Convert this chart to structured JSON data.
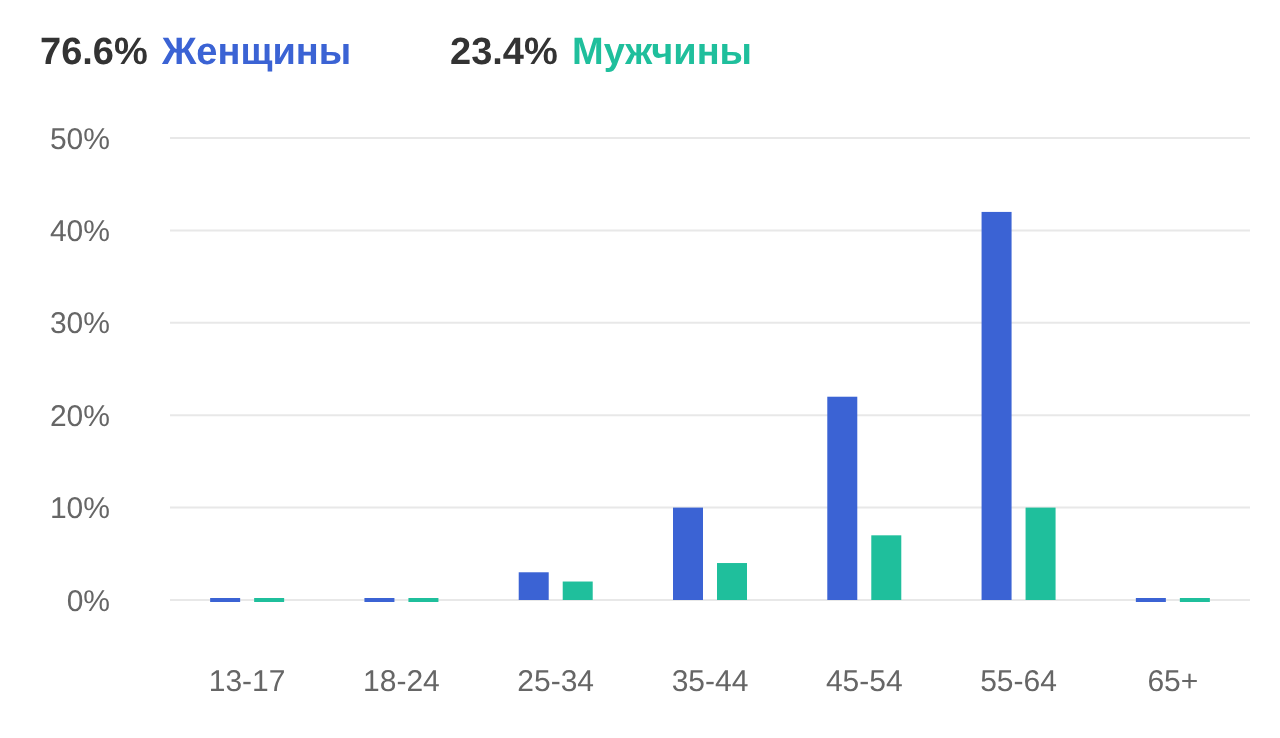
{
  "chart_data": {
    "type": "bar",
    "categories": [
      "13-17",
      "18-24",
      "25-34",
      "35-44",
      "45-54",
      "55-64",
      "65+"
    ],
    "series": [
      {
        "name": "Женщины",
        "color": "#3b63d4",
        "values": [
          0,
          0,
          3,
          10,
          22,
          42,
          0
        ]
      },
      {
        "name": "Мужчины",
        "color": "#1fbf9c",
        "values": [
          0,
          0,
          2,
          4,
          7,
          10,
          0
        ]
      }
    ],
    "annotations": [
      "76.6%",
      "23.4%"
    ],
    "ylim": [
      0,
      50
    ],
    "yticks": [
      {
        "value": 0,
        "label": "0%"
      },
      {
        "value": 10,
        "label": "10%"
      },
      {
        "value": 20,
        "label": "20%"
      },
      {
        "value": 30,
        "label": "30%"
      },
      {
        "value": 40,
        "label": "40%"
      },
      {
        "value": 50,
        "label": "50%"
      }
    ],
    "grid": "y",
    "legend": "top left"
  }
}
